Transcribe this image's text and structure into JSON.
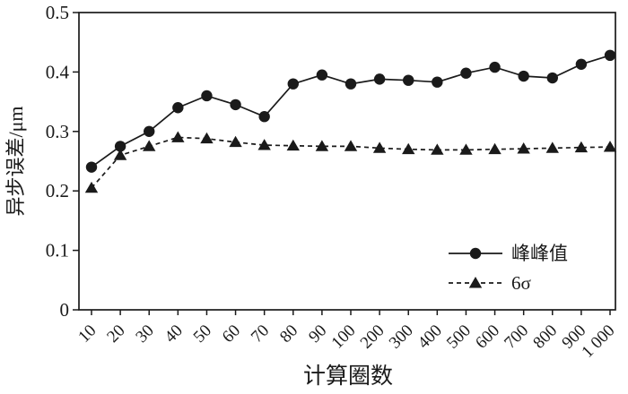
{
  "chart_data": {
    "type": "line",
    "title": "",
    "xlabel": "计算圈数",
    "ylabel": "异步误差/μm",
    "ylim": [
      0,
      0.5
    ],
    "yticks": [
      0,
      0.1,
      0.2,
      0.3,
      0.4,
      0.5
    ],
    "ytick_labels": [
      "0",
      "0.1",
      "0.2",
      "0.3",
      "0.4",
      "0.5"
    ],
    "grid": false,
    "legend_position": "lower right",
    "categories": [
      "10",
      "20",
      "30",
      "40",
      "50",
      "60",
      "70",
      "80",
      "90",
      "100",
      "200",
      "300",
      "400",
      "500",
      "600",
      "700",
      "800",
      "900",
      "1 000"
    ],
    "series": [
      {
        "name": "峰峰值",
        "marker": "circle",
        "line": "solid",
        "values": [
          0.24,
          0.275,
          0.3,
          0.34,
          0.36,
          0.345,
          0.325,
          0.38,
          0.395,
          0.38,
          0.388,
          0.386,
          0.383,
          0.398,
          0.408,
          0.393,
          0.39,
          0.413,
          0.428
        ]
      },
      {
        "name": "6σ",
        "marker": "triangle",
        "line": "dashed",
        "values": [
          0.205,
          0.26,
          0.275,
          0.29,
          0.288,
          0.282,
          0.277,
          0.276,
          0.275,
          0.275,
          0.272,
          0.27,
          0.269,
          0.269,
          0.27,
          0.271,
          0.272,
          0.273,
          0.274
        ]
      }
    ],
    "colors": {
      "ink": "#1a1a1a",
      "background": "#ffffff"
    }
  }
}
